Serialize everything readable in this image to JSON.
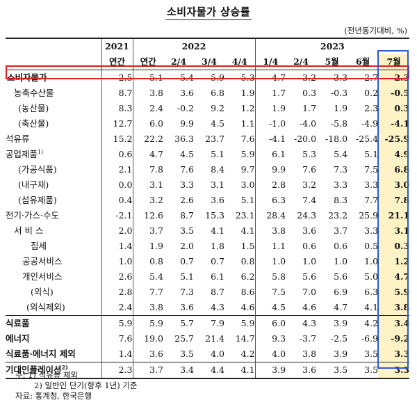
{
  "title": "소비자물가 상승률",
  "unit": "(전년동기대비, %)",
  "header": {
    "years": [
      "2021",
      "2022",
      "2023"
    ],
    "periods": [
      "연간",
      "연간",
      "2/4",
      "3/4",
      "4/4",
      "1/4",
      "2/4",
      "5월",
      "6월",
      "7월"
    ]
  },
  "rows": [
    {
      "label": "소비자물가",
      "values": [
        "2.5",
        "5.1",
        "5.4",
        "5.9",
        "5.3",
        "4.7",
        "3.2",
        "3.3",
        "2.7",
        "2.3"
      ]
    },
    {
      "label": "농축수산물",
      "values": [
        "8.7",
        "3.8",
        "3.6",
        "6.8",
        "1.9",
        "1.7",
        "0.3",
        "-0.3",
        "0.2",
        "-0.5"
      ]
    },
    {
      "label": "(농산물)",
      "values": [
        "8.3",
        "2.4",
        "-0.2",
        "9.2",
        "1.2",
        "1.9",
        "1.7",
        "1.9",
        "2.3",
        "0.3"
      ]
    },
    {
      "label": "(축산물)",
      "values": [
        "12.7",
        "6.0",
        "9.9",
        "4.5",
        "1.1",
        "-1.0",
        "-4.0",
        "-5.8",
        "-4.9",
        "-4.1"
      ]
    },
    {
      "label": "석유류",
      "values": [
        "15.2",
        "22.2",
        "36.3",
        "23.7",
        "7.6",
        "-4.1",
        "-20.0",
        "-18.0",
        "-25.4",
        "-25.9"
      ]
    },
    {
      "label": "공업제품",
      "sup": "1)",
      "values": [
        "0.6",
        "4.7",
        "4.5",
        "5.1",
        "5.9",
        "6.1",
        "5.3",
        "5.4",
        "5.1",
        "4.9"
      ]
    },
    {
      "label": "(가공식품)",
      "values": [
        "2.1",
        "7.8",
        "7.6",
        "8.4",
        "9.7",
        "9.9",
        "7.6",
        "7.3",
        "7.5",
        "6.8"
      ]
    },
    {
      "label": "(내구재)",
      "values": [
        "0.0",
        "3.1",
        "3.3",
        "3.1",
        "3.0",
        "2.8",
        "3.2",
        "3.3",
        "3.3",
        "3.0"
      ]
    },
    {
      "label": "(섬유제품)",
      "values": [
        "0.4",
        "3.2",
        "2.6",
        "3.6",
        "5.1",
        "6.3",
        "7.4",
        "8.3",
        "7.7",
        "7.8"
      ]
    },
    {
      "label": "전기·가스·수도",
      "values": [
        "-2.1",
        "12.6",
        "8.7",
        "15.3",
        "23.1",
        "28.4",
        "24.3",
        "23.2",
        "25.9",
        "21.1"
      ]
    },
    {
      "label": "서 비 스",
      "values": [
        "2.0",
        "3.7",
        "3.5",
        "4.1",
        "4.1",
        "3.8",
        "3.6",
        "3.7",
        "3.3",
        "3.1"
      ]
    },
    {
      "label": "집세",
      "values": [
        "1.4",
        "1.9",
        "2.0",
        "1.8",
        "1.5",
        "1.1",
        "0.6",
        "0.6",
        "0.5",
        "0.3"
      ]
    },
    {
      "label": "공공서비스",
      "values": [
        "1.0",
        "0.8",
        "0.7",
        "0.7",
        "0.8",
        "1.0",
        "1.0",
        "1.0",
        "1.0",
        "1.2"
      ]
    },
    {
      "label": "개인서비스",
      "values": [
        "2.6",
        "5.4",
        "5.1",
        "6.1",
        "6.2",
        "5.8",
        "5.6",
        "5.6",
        "5.0",
        "4.7"
      ]
    },
    {
      "label": "(외식)",
      "values": [
        "2.8",
        "7.7",
        "7.3",
        "8.7",
        "8.6",
        "7.5",
        "7.0",
        "6.9",
        "6.3",
        "5.9"
      ]
    },
    {
      "label": "(외식제외)",
      "values": [
        "2.4",
        "3.8",
        "3.6",
        "4.3",
        "4.6",
        "4.5",
        "4.6",
        "4.7",
        "4.1",
        "3.8"
      ]
    },
    {
      "label": "식료품",
      "values": [
        "5.9",
        "5.9",
        "5.7",
        "7.9",
        "5.9",
        "6.0",
        "4.3",
        "3.9",
        "4.2",
        "3.4"
      ]
    },
    {
      "label": "에너지",
      "values": [
        "7.6",
        "19.0",
        "25.7",
        "21.4",
        "14.7",
        "9.3",
        "-3.7",
        "-2.5",
        "-6.9",
        "-9.2"
      ]
    },
    {
      "label": "식료품·에너지 제외",
      "values": [
        "1.4",
        "3.6",
        "3.5",
        "4.0",
        "4.2",
        "4.0",
        "3.8",
        "3.9",
        "3.5",
        "3.3"
      ]
    },
    {
      "label": "기대인플레이션",
      "sup": "2)",
      "values": [
        "2.3",
        "3.7",
        "3.4",
        "4.4",
        "4.1",
        "3.9",
        "3.6",
        "3.5",
        "3.5",
        "3.3"
      ]
    }
  ],
  "notes": [
    "주: 1) 석유류 제외",
    "2) 일반인 단기(향후 1년) 기준",
    "자료: 통계청, 한국은행"
  ]
}
